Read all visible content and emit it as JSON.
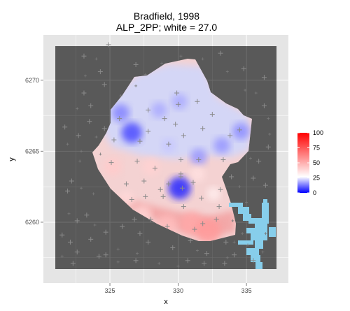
{
  "chart_data": {
    "type": "heatmap",
    "title": "Bradfield, 1998",
    "subtitle": "ALP_2PP; white = 27.0",
    "xlabel": "x",
    "ylabel": "y",
    "x_ticks": [
      325,
      330,
      335
    ],
    "y_ticks": [
      6260,
      6265,
      6270
    ],
    "xlim": [
      321,
      337.2
    ],
    "ylim": [
      6256.7,
      6272.4
    ],
    "fill_scale": {
      "name": "",
      "min": 0,
      "midpoint": 27.0,
      "max": 100,
      "breaks": [
        0,
        25,
        50,
        75,
        100
      ],
      "low_color": "#0000ff",
      "mid_color": "#ffffff",
      "high_color": "#ff0000"
    },
    "colors": {
      "panel": "#595959",
      "water": "#87ceeb",
      "grid": "#6e6e6e"
    },
    "hotspots": [
      {
        "x": 330.1,
        "y": 6262.4,
        "value": 4
      },
      {
        "x": 326.6,
        "y": 6266.3,
        "value": 8
      },
      {
        "x": 325.8,
        "y": 6267.7,
        "value": 14
      },
      {
        "x": 334.6,
        "y": 6266.4,
        "value": 15
      },
      {
        "x": 331.5,
        "y": 6264.6,
        "value": 16
      },
      {
        "x": 328.6,
        "y": 6267.9,
        "value": 18
      },
      {
        "x": 330.1,
        "y": 6268.5,
        "value": 18
      },
      {
        "x": 329.3,
        "y": 6265.4,
        "value": 21
      },
      {
        "x": 333.2,
        "y": 6265.4,
        "value": 16
      },
      {
        "x": 325.2,
        "y": 6263.9,
        "value": 42
      },
      {
        "x": 328.0,
        "y": 6263.9,
        "value": 40
      },
      {
        "x": 331.4,
        "y": 6263.4,
        "value": 36
      },
      {
        "x": 326.2,
        "y": 6261.6,
        "value": 38
      },
      {
        "x": 331.0,
        "y": 6259.9,
        "value": 52
      },
      {
        "x": 329.2,
        "y": 6259.8,
        "value": 46
      },
      {
        "x": 332.2,
        "y": 6259.4,
        "value": 56
      },
      {
        "x": 327.4,
        "y": 6260.6,
        "value": 40
      },
      {
        "x": 332.6,
        "y": 6262.0,
        "value": 32
      }
    ],
    "points": [
      [
        324.9,
        6272.5
      ],
      [
        323.1,
        6271.7
      ],
      [
        324.3,
        6270.6
      ],
      [
        321.7,
        6266.7
      ],
      [
        323.5,
        6267.1
      ],
      [
        322.7,
        6266.1
      ],
      [
        323.6,
        6268.2
      ],
      [
        323.1,
        6269.1
      ],
      [
        324.6,
        6269.7
      ],
      [
        326.9,
        6271.1
      ],
      [
        333.1,
        6271.9
      ],
      [
        336.3,
        6270.2
      ],
      [
        334.8,
        6270.8
      ],
      [
        336.3,
        6268.2
      ],
      [
        336.6,
        6265.3
      ],
      [
        335.9,
        6264.3
      ],
      [
        335.5,
        6263.1
      ],
      [
        336.4,
        6262.6
      ],
      [
        322.2,
        6262.9
      ],
      [
        321.9,
        6262.2
      ],
      [
        323.3,
        6260.5
      ],
      [
        322.6,
        6260.1
      ],
      [
        321.5,
        6259.1
      ],
      [
        322.1,
        6258.6
      ],
      [
        323.6,
        6258.8
      ],
      [
        324.7,
        6259.3
      ],
      [
        322.6,
        6257.9
      ],
      [
        324.2,
        6257.6
      ],
      [
        322.3,
        6257.1
      ],
      [
        324.7,
        6257.7
      ],
      [
        326.9,
        6257.3
      ],
      [
        327.8,
        6258.6
      ],
      [
        329.6,
        6258.2
      ],
      [
        330.7,
        6257.3
      ],
      [
        331.9,
        6257.1
      ],
      [
        332.1,
        6257.8
      ],
      [
        333.5,
        6258.6
      ],
      [
        334.1,
        6257.7
      ],
      [
        335.5,
        6257.3
      ],
      [
        333.4,
        6257.1
      ],
      [
        324.6,
        6266.6
      ],
      [
        325.3,
        6265.8
      ],
      [
        325.1,
        6264.2
      ],
      [
        327.0,
        6264.3
      ],
      [
        327.2,
        6265.7
      ],
      [
        327.8,
        6267.9
      ],
      [
        327.8,
        6266.4
      ],
      [
        329.0,
        6267.3
      ],
      [
        329.8,
        6266.9
      ],
      [
        329.3,
        6265.5
      ],
      [
        330.4,
        6266.1
      ],
      [
        331.8,
        6266.6
      ],
      [
        332.5,
        6267.6
      ],
      [
        331.4,
        6268.5
      ],
      [
        330.0,
        6268.3
      ],
      [
        333.8,
        6266.1
      ],
      [
        334.5,
        6266.5
      ],
      [
        333.3,
        6264.4
      ],
      [
        331.5,
        6264.4
      ],
      [
        330.2,
        6264.4
      ],
      [
        330.2,
        6263.4
      ],
      [
        331.1,
        6262.8
      ],
      [
        328.3,
        6263.8
      ],
      [
        329.3,
        6262.7
      ],
      [
        327.5,
        6262.9
      ],
      [
        327.6,
        6261.8
      ],
      [
        326.2,
        6262.7
      ],
      [
        326.6,
        6261.6
      ],
      [
        328.9,
        6261.8
      ],
      [
        330.3,
        6262.4
      ],
      [
        330.4,
        6261.1
      ],
      [
        331.7,
        6261.7
      ],
      [
        333.1,
        6262.3
      ],
      [
        333.0,
        6261.1
      ],
      [
        332.8,
        6260.2
      ],
      [
        331.8,
        6259.9
      ],
      [
        331.2,
        6259.5
      ],
      [
        330.9,
        6258.7
      ],
      [
        329.2,
        6259.7
      ],
      [
        328.0,
        6260.2
      ],
      [
        326.8,
        6260.2
      ],
      [
        325.9,
        6259.7
      ],
      [
        327.2,
        6259.2
      ],
      [
        333.9,
        6263.2
      ],
      [
        330.2,
        6263.2
      ],
      [
        325.7,
        6267.3
      ],
      [
        329.9,
        6269.1
      ],
      [
        328.7,
        6262.3
      ]
    ],
    "points_small": [
      [
        323.2,
        6270.3
      ],
      [
        322.6,
        6268.0
      ],
      [
        321.9,
        6265.5
      ],
      [
        322.8,
        6264.3
      ],
      [
        322.9,
        6262.4
      ],
      [
        323.8,
        6262.0
      ],
      [
        324.3,
        6264.8
      ],
      [
        324.0,
        6266.0
      ],
      [
        325.8,
        6268.9
      ],
      [
        326.9,
        6269.6
      ],
      [
        327.6,
        6270.4
      ],
      [
        328.8,
        6271.2
      ],
      [
        330.2,
        6271.7
      ],
      [
        331.8,
        6271.5
      ],
      [
        333.6,
        6270.6
      ],
      [
        334.9,
        6269.3
      ],
      [
        335.7,
        6269.1
      ],
      [
        336.6,
        6267.3
      ],
      [
        336.7,
        6266.2
      ],
      [
        335.3,
        6264.5
      ],
      [
        334.5,
        6262.5
      ],
      [
        335.0,
        6261.4
      ],
      [
        334.0,
        6260.1
      ],
      [
        334.7,
        6259.2
      ],
      [
        335.1,
        6258.4
      ],
      [
        336.4,
        6259.2
      ],
      [
        323.9,
        6259.8
      ],
      [
        322.0,
        6260.6
      ],
      [
        325.6,
        6258.1
      ],
      [
        328.6,
        6257.1
      ],
      [
        331.4,
        6258.0
      ],
      [
        334.1,
        6258.6
      ],
      [
        325.6,
        6257.2
      ],
      [
        336.2,
        6257.9
      ],
      [
        327.0,
        6257.8
      ],
      [
        330.0,
        6256.9
      ],
      [
        333.6,
        6257.5
      ],
      [
        321.5,
        6257.6
      ],
      [
        322.9,
        6265.0
      ],
      [
        324.0,
        6271.5
      ]
    ]
  }
}
